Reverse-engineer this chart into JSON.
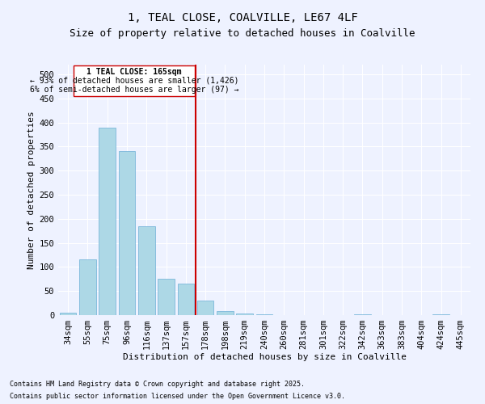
{
  "title": "1, TEAL CLOSE, COALVILLE, LE67 4LF",
  "subtitle": "Size of property relative to detached houses in Coalville",
  "xlabel": "Distribution of detached houses by size in Coalville",
  "ylabel": "Number of detached properties",
  "categories": [
    "34sqm",
    "55sqm",
    "75sqm",
    "96sqm",
    "116sqm",
    "137sqm",
    "157sqm",
    "178sqm",
    "198sqm",
    "219sqm",
    "240sqm",
    "260sqm",
    "281sqm",
    "301sqm",
    "322sqm",
    "342sqm",
    "363sqm",
    "383sqm",
    "404sqm",
    "424sqm",
    "445sqm"
  ],
  "values": [
    5,
    115,
    390,
    340,
    185,
    75,
    65,
    30,
    8,
    3,
    2,
    0,
    0,
    0,
    0,
    1,
    0,
    0,
    0,
    1,
    0
  ],
  "bar_color": "#add8e6",
  "bar_edge_color": "#6baed6",
  "marker_label": "1 TEAL CLOSE: 165sqm",
  "annotation_line1": "← 93% of detached houses are smaller (1,426)",
  "annotation_line2": "6% of semi-detached houses are larger (97) →",
  "vline_color": "#cc0000",
  "box_edge_color": "#cc0000",
  "ylim": [
    0,
    520
  ],
  "yticks": [
    0,
    50,
    100,
    150,
    200,
    250,
    300,
    350,
    400,
    450,
    500
  ],
  "footnote1": "Contains HM Land Registry data © Crown copyright and database right 2025.",
  "footnote2": "Contains public sector information licensed under the Open Government Licence v3.0.",
  "bg_color": "#eef2ff",
  "plot_bg_color": "#eef2ff",
  "title_fontsize": 10,
  "subtitle_fontsize": 9,
  "axis_fontsize": 8,
  "tick_fontsize": 7.5,
  "footnote_fontsize": 6
}
